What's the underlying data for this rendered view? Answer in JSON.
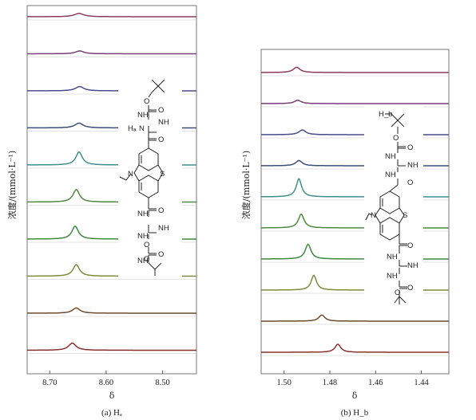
{
  "y_axis_title": "浓度/(mmol·L⁻¹)",
  "colors": {
    "traces": [
      "#8e3b5c",
      "#7a3f78",
      "#4a4a8c",
      "#3c4f7a",
      "#3f8f8f",
      "#4f8a3f",
      "#3d8a3d",
      "#7f8a3a",
      "#6e4a2a",
      "#8a2e2e"
    ],
    "frame": "#777777",
    "grid": "#c8c8c8"
  },
  "chart_data": [
    {
      "type": "line",
      "caption": "(a) Hₐ",
      "xlabel": "δ",
      "ylabel": "浓度/(mmol·L⁻¹)",
      "x_reversed": true,
      "xlim": [
        8.74,
        8.44
      ],
      "xticks": [
        8.7,
        8.6,
        8.5
      ],
      "xtick_labels": [
        "8.70",
        "8.60",
        "8.50"
      ],
      "series": [
        {
          "peak_x": 8.648,
          "height": 0.35,
          "width": 0.01
        },
        {
          "peak_x": 8.647,
          "height": 0.3,
          "width": 0.009
        },
        {
          "peak_x": 8.647,
          "height": 0.45,
          "width": 0.009
        },
        {
          "peak_x": 8.648,
          "height": 0.5,
          "width": 0.009
        },
        {
          "peak_x": 8.648,
          "height": 1.35,
          "width": 0.007
        },
        {
          "peak_x": 8.653,
          "height": 1.3,
          "width": 0.007
        },
        {
          "peak_x": 8.655,
          "height": 1.35,
          "width": 0.007
        },
        {
          "peak_x": 8.653,
          "height": 1.2,
          "width": 0.007
        },
        {
          "peak_x": 8.653,
          "height": 0.55,
          "width": 0.008
        },
        {
          "peak_x": 8.66,
          "height": 0.75,
          "width": 0.008
        }
      ],
      "molecule_labels": [
        "O",
        "O",
        "NH",
        "NH",
        "O",
        "NH",
        "NH",
        "O",
        "O",
        "NH",
        "NH",
        "O",
        "O",
        "S",
        "N",
        "Hₐ",
        "N"
      ]
    },
    {
      "type": "line",
      "caption": "(b) H_b",
      "xlabel": "δ",
      "ylabel": "浓度/(mmol·L⁻¹)",
      "x_reversed": true,
      "xlim": [
        1.51,
        1.428
      ],
      "xticks": [
        1.5,
        1.48,
        1.46,
        1.44
      ],
      "xtick_labels": [
        "1.50",
        "1.48",
        "1.46",
        "1.44"
      ],
      "series": [
        {
          "peak_x": 1.4945,
          "height": 0.55,
          "width": 0.0018
        },
        {
          "peak_x": 1.494,
          "height": 0.35,
          "width": 0.0018
        },
        {
          "peak_x": 1.492,
          "height": 0.5,
          "width": 0.0018
        },
        {
          "peak_x": 1.4935,
          "height": 0.55,
          "width": 0.0017
        },
        {
          "peak_x": 1.4935,
          "height": 1.9,
          "width": 0.0014
        },
        {
          "peak_x": 1.4925,
          "height": 1.45,
          "width": 0.0015
        },
        {
          "peak_x": 1.4895,
          "height": 1.55,
          "width": 0.0015
        },
        {
          "peak_x": 1.487,
          "height": 1.55,
          "width": 0.0014
        },
        {
          "peak_x": 1.4835,
          "height": 0.65,
          "width": 0.0016
        },
        {
          "peak_x": 1.4765,
          "height": 0.85,
          "width": 0.0015
        }
      ],
      "molecule_labels": [
        "H_b",
        "O",
        "O",
        "NH",
        "NH",
        "NH",
        "O",
        "S",
        "N",
        "O",
        "NH",
        "NH",
        "NH",
        "O",
        "O"
      ]
    }
  ]
}
